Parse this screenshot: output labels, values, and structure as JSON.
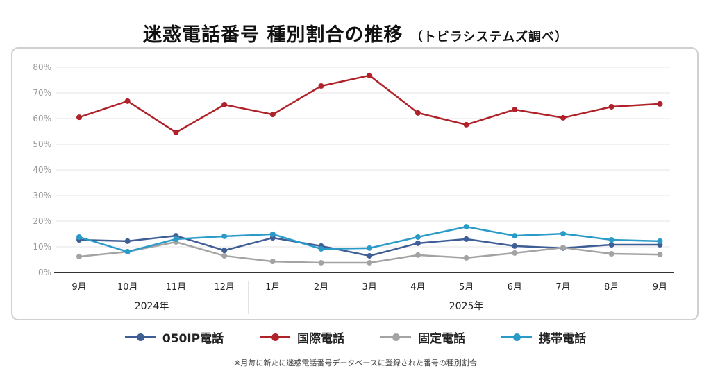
{
  "title": "迷惑電話番号 種別割合の推移",
  "subtitle": "（トビラシステムズ調べ）",
  "note": "※月毎に新たに迷惑電話番号データベースに登録された番号の種別割合",
  "chart_data": {
    "type": "line",
    "title": "迷惑電話番号 種別割合の推移",
    "categories": [
      "9月",
      "10月",
      "11月",
      "12月",
      "1月",
      "2月",
      "3月",
      "4月",
      "5月",
      "6月",
      "7月",
      "8月",
      "9月"
    ],
    "year_groups": [
      {
        "label": "2024年",
        "months": 4
      },
      {
        "label": "2025年",
        "months": 9
      }
    ],
    "ylim": [
      0,
      80
    ],
    "yticks": [
      "0%",
      "10%",
      "20%",
      "30%",
      "40%",
      "50%",
      "60%",
      "70%",
      "80%"
    ],
    "ytick_values": [
      0,
      10,
      20,
      30,
      40,
      50,
      60,
      70,
      80
    ],
    "grid": true,
    "legend_position": "bottom",
    "series": [
      {
        "name": "050IP電話",
        "color": "#3f5e96",
        "values": [
          12.7,
          12.2,
          14.3,
          8.6,
          13.5,
          10.3,
          6.5,
          11.4,
          13.0,
          10.3,
          9.5,
          10.8,
          10.8
        ]
      },
      {
        "name": "国際電話",
        "color": "#b0222a",
        "values": [
          60.5,
          66.8,
          54.6,
          65.4,
          61.6,
          72.7,
          76.8,
          62.2,
          57.6,
          63.5,
          60.3,
          64.6,
          65.7
        ]
      },
      {
        "name": "固定電話",
        "color": "#a3a3a3",
        "values": [
          6.2,
          8.1,
          11.9,
          6.5,
          4.3,
          3.8,
          3.8,
          6.8,
          5.7,
          7.6,
          9.7,
          7.3,
          7.0
        ]
      },
      {
        "name": "携帯電話",
        "color": "#2a9bc8",
        "values": [
          13.8,
          8.1,
          13.0,
          14.1,
          14.9,
          9.2,
          9.5,
          13.8,
          17.8,
          14.3,
          15.1,
          12.7,
          12.2
        ]
      }
    ]
  }
}
